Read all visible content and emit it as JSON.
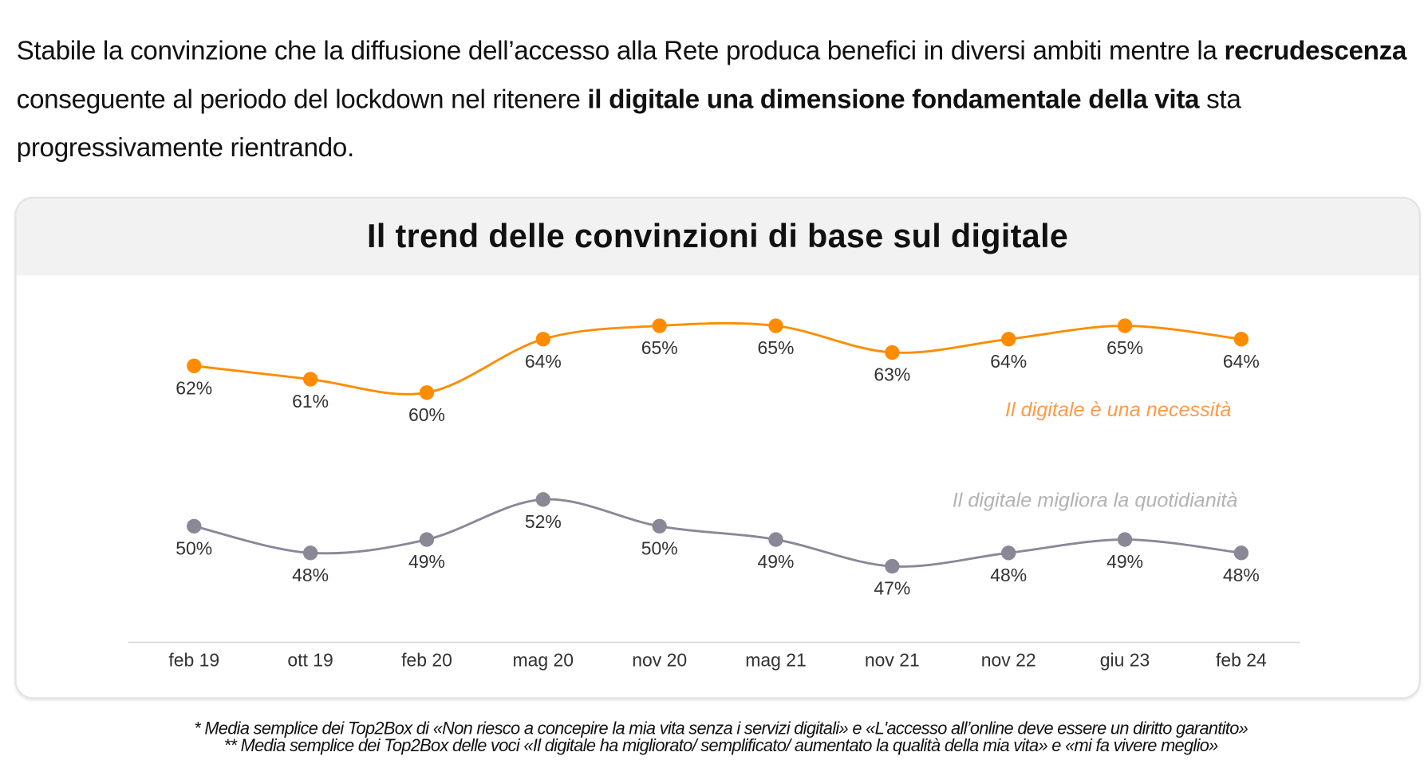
{
  "intro": {
    "t1": "Stabile la convinzione che la diffusione dell’accesso alla Rete produca benefici in diversi ambiti mentre la ",
    "b1": "recrudescenza",
    "t2": " conseguente al periodo del lockdown nel ritenere ",
    "b2": "il digitale una dimensione fondamentale della vita",
    "t3": " sta progressivamente rientrando."
  },
  "chart_data": {
    "type": "line",
    "title": "Il trend delle convinzioni di base sul digitale",
    "categories": [
      "feb 19",
      "ott 19",
      "feb 20",
      "mag 20",
      "nov 20",
      "mag 21",
      "nov 21",
      "nov 22",
      "giu 23",
      "feb 24"
    ],
    "series": [
      {
        "name": "Il digitale è una necessità",
        "color": "#ff8c00",
        "values": [
          62,
          61,
          60,
          64,
          65,
          65,
          63,
          64,
          65,
          64
        ]
      },
      {
        "name": "Il digitale migliora la quotidianità",
        "color": "#8a8797",
        "values": [
          50,
          48,
          49,
          52,
          50,
          49,
          47,
          48,
          49,
          48
        ]
      }
    ],
    "value_suffix": "%",
    "xlabel": "",
    "ylabel": "",
    "grid": false
  },
  "footnotes": [
    "* Media semplice dei Top2Box di «Non riesco a concepire la mia vita senza i servizi digitali» e «L'accesso all’online deve essere un diritto garantito»",
    "** Media semplice dei Top2Box delle voci «Il digitale ha migliorato/ semplificato/ aumentato la qualità della mia vita» e «mi fa vivere meglio»"
  ]
}
